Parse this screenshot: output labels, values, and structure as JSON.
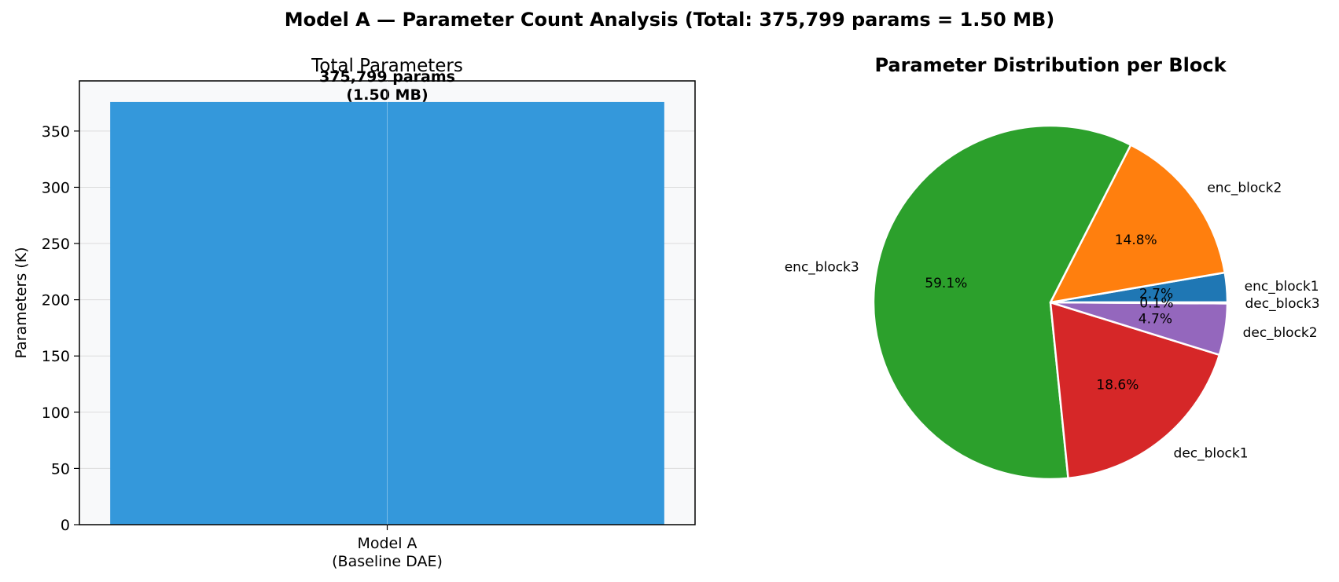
{
  "suptitle": "Model A — Parameter Count Analysis  (Total: 375,799 params = 1.50 MB)",
  "chart_data": [
    {
      "type": "bar",
      "title": "Total Parameters",
      "xlabel": "",
      "ylabel": "Parameters (K)",
      "categories": [
        "Model A\n(Baseline DAE)"
      ],
      "values": [
        375.799
      ],
      "bar_label_line1": "375,799 params",
      "bar_label_line2": "(1.50 MB)",
      "ylim": [
        0,
        394.6
      ],
      "yticks": [
        0,
        50,
        100,
        150,
        200,
        250,
        300,
        350
      ],
      "grid": true,
      "bar_color": "#3498db",
      "plot_background": "#f8f9fa"
    },
    {
      "type": "pie",
      "title": "Parameter Distribution per Block",
      "slices": [
        {
          "label": "enc_block1",
          "value": 2.7,
          "pct_label": "2.7%",
          "color": "#1f77b4"
        },
        {
          "label": "enc_block2",
          "value": 14.8,
          "pct_label": "14.8%",
          "color": "#ff7f0e"
        },
        {
          "label": "enc_block3",
          "value": 59.1,
          "pct_label": "59.1%",
          "color": "#2ca02c"
        },
        {
          "label": "dec_block1",
          "value": 18.6,
          "pct_label": "18.6%",
          "color": "#d62728"
        },
        {
          "label": "dec_block2",
          "value": 4.7,
          "pct_label": "4.7%",
          "color": "#9467bd"
        },
        {
          "label": "dec_block3",
          "value": 0.1,
          "pct_label": "0.1%",
          "color": "#8c564b"
        }
      ],
      "start_angle_deg": 0,
      "direction": "counterclockwise",
      "edge_color": "#ffffff"
    }
  ]
}
